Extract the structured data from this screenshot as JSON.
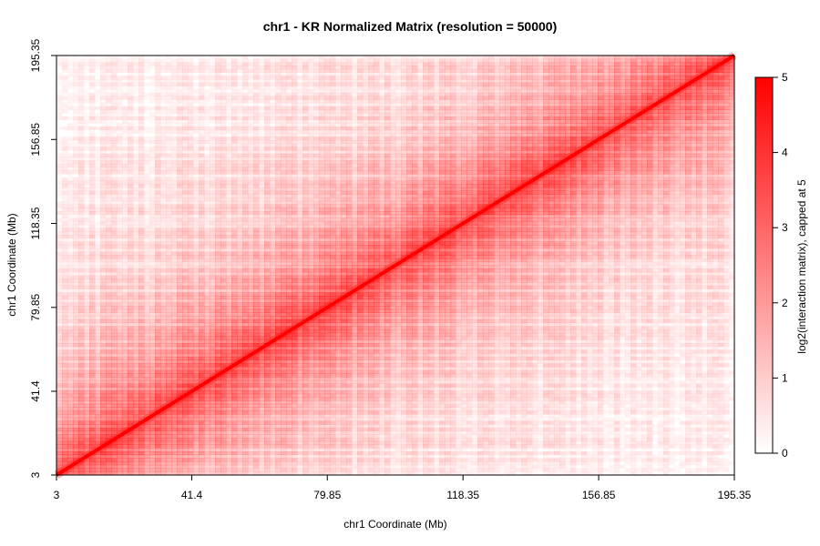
{
  "chart_data": {
    "type": "heatmap",
    "title": "chr1 - KR Normalized Matrix (resolution = 50000)",
    "xlabel": "chr1 Coordinate (Mb)",
    "ylabel": "chr1 Coordinate (Mb)",
    "x_ticks": [
      "3",
      "41.4",
      "79.85",
      "118.35",
      "156.85",
      "195.35"
    ],
    "y_ticks": [
      "3",
      "41.4",
      "79.85",
      "118.35",
      "156.85",
      "195.35"
    ],
    "xlim": [
      3,
      195.35
    ],
    "ylim": [
      3,
      195.35
    ],
    "colorbar": {
      "label": "log2(interaction matrix), capped at 5",
      "ticks": [
        "0",
        "1",
        "2",
        "3",
        "4",
        "5"
      ],
      "range": [
        0,
        5
      ],
      "color_low": "#ffffff",
      "color_high": "#ff0000"
    },
    "diagonal_value": 5,
    "notes": "Symmetric Hi-C contact matrix; strongest signal along diagonal, checkerboard compartment pattern off-diagonal"
  }
}
